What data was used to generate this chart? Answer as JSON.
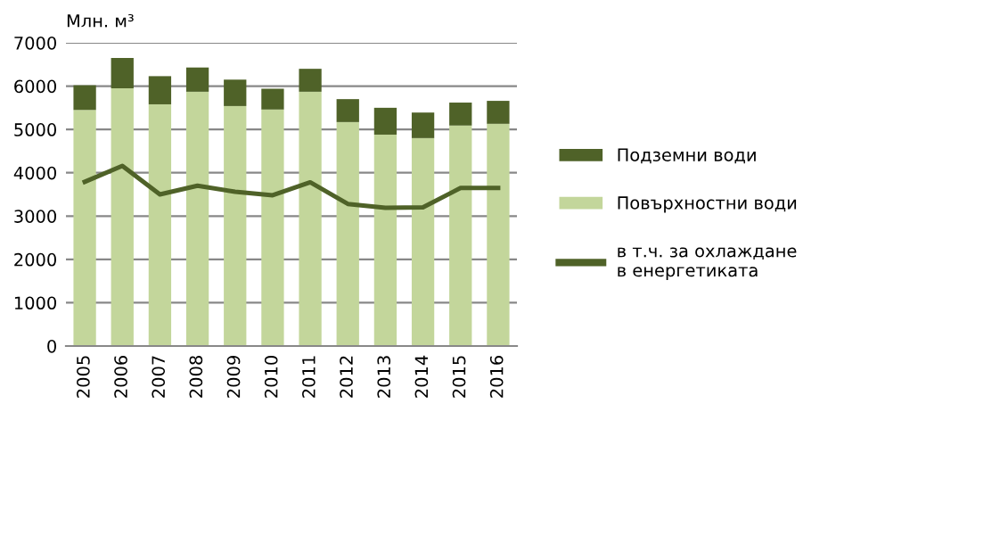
{
  "chart_data": {
    "type": "bar",
    "ylabel": "Млн. м³",
    "stacked": true,
    "categories": [
      "2005",
      "2006",
      "2007",
      "2008",
      "2009",
      "2010",
      "2011",
      "2012",
      "2013",
      "2014",
      "2015",
      "2016"
    ],
    "series": [
      {
        "name": "Повърхностни води",
        "color": "#c3d69b",
        "values": [
          5450,
          5950,
          5580,
          5870,
          5540,
          5460,
          5870,
          5170,
          4880,
          4800,
          5090,
          5130
        ]
      },
      {
        "name": "Подземни води",
        "color": "#4f6228",
        "values": [
          570,
          700,
          650,
          560,
          610,
          480,
          530,
          530,
          620,
          590,
          530,
          530
        ]
      },
      {
        "name": "в т.ч. за охлаждане в енергетиката",
        "type": "line",
        "color": "#4f6228",
        "values": [
          3790,
          4160,
          3500,
          3700,
          3560,
          3480,
          3780,
          3280,
          3190,
          3200,
          3650,
          3650
        ]
      }
    ],
    "ylim": [
      0,
      7000
    ],
    "yticks": [
      0,
      1000,
      2000,
      3000,
      4000,
      5000,
      6000,
      7000
    ],
    "grid": "y",
    "legend": "right",
    "marker": "none"
  }
}
